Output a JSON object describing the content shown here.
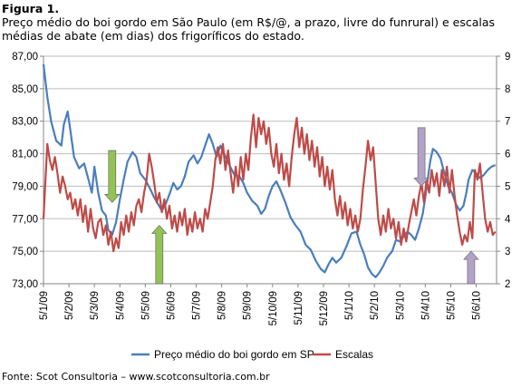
{
  "figure": {
    "label": "Figura 1.",
    "caption": "Preço médio do boi gordo em São Paulo (em R$/@, a prazo, livre do funrural) e escalas médias de abate (em dias) dos frigoríficos do estado.",
    "source": "Fonte: Scot Consultoria – www.scotconsultoria.com.br"
  },
  "chart_data": {
    "type": "line",
    "title": "",
    "xlabel": "",
    "ylabel": "",
    "x_ticks": [
      "5/1/09",
      "5/2/09",
      "5/3/09",
      "5/4/09",
      "5/5/09",
      "5/6/09",
      "5/7/09",
      "5/8/09",
      "5/9/09",
      "5/10/09",
      "5/11/09",
      "5/12/09",
      "5/1/10",
      "5/2/10",
      "5/3/10",
      "5/4/10",
      "5/5/10",
      "5/6/10"
    ],
    "x_range": [
      0,
      17.8
    ],
    "y_left": {
      "min": 73,
      "max": 87,
      "step": 2,
      "tick_labels": [
        "73,00",
        "75,00",
        "77,00",
        "79,00",
        "81,00",
        "83,00",
        "85,00",
        "87,00"
      ]
    },
    "y_right": {
      "min": 2,
      "max": 9,
      "step": 1,
      "tick_labels": [
        "2",
        "3",
        "4",
        "5",
        "6",
        "7",
        "8",
        "9"
      ]
    },
    "grid": "horizontal",
    "legend_position": "bottom",
    "series": [
      {
        "name": "Preço médio do boi gordo em SP",
        "axis": "left",
        "color": "#4a7ebb",
        "points": [
          [
            0.0,
            86.5
          ],
          [
            0.15,
            84.5
          ],
          [
            0.3,
            83.0
          ],
          [
            0.5,
            81.8
          ],
          [
            0.7,
            81.5
          ],
          [
            0.8,
            82.8
          ],
          [
            0.95,
            83.6
          ],
          [
            1.05,
            82.5
          ],
          [
            1.2,
            80.8
          ],
          [
            1.4,
            80.1
          ],
          [
            1.6,
            80.4
          ],
          [
            1.75,
            79.5
          ],
          [
            1.9,
            78.6
          ],
          [
            2.0,
            80.2
          ],
          [
            2.15,
            78.6
          ],
          [
            2.3,
            77.5
          ],
          [
            2.45,
            77.2
          ],
          [
            2.55,
            76.3
          ],
          [
            2.7,
            76.0
          ],
          [
            2.85,
            76.8
          ],
          [
            3.0,
            78.2
          ],
          [
            3.15,
            79.4
          ],
          [
            3.3,
            80.5
          ],
          [
            3.5,
            81.1
          ],
          [
            3.65,
            80.8
          ],
          [
            3.8,
            79.8
          ],
          [
            4.0,
            79.4
          ],
          [
            4.2,
            78.8
          ],
          [
            4.35,
            78.3
          ],
          [
            4.5,
            77.9
          ],
          [
            4.65,
            77.5
          ],
          [
            4.8,
            77.9
          ],
          [
            4.95,
            78.5
          ],
          [
            5.1,
            79.2
          ],
          [
            5.25,
            78.8
          ],
          [
            5.4,
            79.0
          ],
          [
            5.55,
            79.6
          ],
          [
            5.7,
            80.5
          ],
          [
            5.9,
            80.9
          ],
          [
            6.05,
            80.4
          ],
          [
            6.2,
            80.8
          ],
          [
            6.35,
            81.5
          ],
          [
            6.5,
            82.2
          ],
          [
            6.65,
            81.6
          ],
          [
            6.8,
            80.8
          ],
          [
            6.95,
            81.5
          ],
          [
            7.1,
            81.0
          ],
          [
            7.3,
            80.3
          ],
          [
            7.5,
            79.7
          ],
          [
            7.7,
            79.6
          ],
          [
            7.85,
            79.2
          ],
          [
            8.0,
            78.6
          ],
          [
            8.2,
            78.1
          ],
          [
            8.4,
            77.8
          ],
          [
            8.55,
            77.3
          ],
          [
            8.7,
            77.6
          ],
          [
            8.85,
            78.4
          ],
          [
            9.0,
            79.0
          ],
          [
            9.15,
            79.3
          ],
          [
            9.3,
            78.8
          ],
          [
            9.5,
            78.0
          ],
          [
            9.7,
            77.1
          ],
          [
            9.9,
            76.6
          ],
          [
            10.1,
            76.2
          ],
          [
            10.3,
            75.4
          ],
          [
            10.5,
            75.1
          ],
          [
            10.7,
            74.4
          ],
          [
            10.9,
            73.9
          ],
          [
            11.05,
            73.7
          ],
          [
            11.2,
            74.2
          ],
          [
            11.35,
            74.6
          ],
          [
            11.5,
            74.3
          ],
          [
            11.7,
            74.6
          ],
          [
            11.9,
            75.3
          ],
          [
            12.1,
            76.1
          ],
          [
            12.3,
            76.2
          ],
          [
            12.45,
            75.4
          ],
          [
            12.6,
            74.8
          ],
          [
            12.75,
            74.0
          ],
          [
            12.9,
            73.6
          ],
          [
            13.05,
            73.4
          ],
          [
            13.2,
            73.7
          ],
          [
            13.35,
            74.1
          ],
          [
            13.5,
            74.6
          ],
          [
            13.7,
            75.0
          ],
          [
            13.85,
            75.7
          ],
          [
            14.0,
            75.6
          ],
          [
            14.15,
            75.9
          ],
          [
            14.3,
            76.2
          ],
          [
            14.45,
            76.0
          ],
          [
            14.6,
            75.7
          ],
          [
            14.75,
            76.4
          ],
          [
            14.9,
            77.3
          ],
          [
            15.0,
            78.3
          ],
          [
            15.1,
            79.5
          ],
          [
            15.2,
            80.6
          ],
          [
            15.3,
            81.3
          ],
          [
            15.45,
            81.1
          ],
          [
            15.6,
            80.7
          ],
          [
            15.75,
            79.8
          ],
          [
            15.9,
            79.0
          ],
          [
            16.05,
            78.6
          ],
          [
            16.2,
            77.9
          ],
          [
            16.35,
            77.5
          ],
          [
            16.5,
            77.8
          ],
          [
            16.6,
            78.5
          ],
          [
            16.7,
            79.4
          ],
          [
            16.85,
            80.0
          ],
          [
            17.0,
            79.8
          ],
          [
            17.15,
            79.5
          ],
          [
            17.3,
            79.7
          ],
          [
            17.45,
            80.0
          ],
          [
            17.6,
            80.2
          ],
          [
            17.75,
            80.3
          ]
        ]
      },
      {
        "name": "Escalas",
        "axis": "right",
        "color": "#be4b48",
        "points": [
          [
            0.0,
            4.0
          ],
          [
            0.08,
            5.2
          ],
          [
            0.15,
            6.3
          ],
          [
            0.25,
            5.8
          ],
          [
            0.35,
            5.5
          ],
          [
            0.45,
            5.9
          ],
          [
            0.55,
            5.4
          ],
          [
            0.65,
            4.8
          ],
          [
            0.75,
            5.3
          ],
          [
            0.85,
            5.0
          ],
          [
            0.95,
            4.6
          ],
          [
            1.05,
            4.8
          ],
          [
            1.15,
            4.3
          ],
          [
            1.25,
            4.6
          ],
          [
            1.35,
            4.1
          ],
          [
            1.45,
            4.6
          ],
          [
            1.55,
            3.9
          ],
          [
            1.65,
            4.4
          ],
          [
            1.75,
            3.6
          ],
          [
            1.85,
            4.3
          ],
          [
            1.95,
            3.7
          ],
          [
            2.05,
            3.4
          ],
          [
            2.15,
            3.9
          ],
          [
            2.25,
            4.0
          ],
          [
            2.35,
            3.5
          ],
          [
            2.45,
            3.8
          ],
          [
            2.55,
            3.2
          ],
          [
            2.65,
            3.6
          ],
          [
            2.75,
            3.0
          ],
          [
            2.85,
            3.4
          ],
          [
            2.95,
            3.1
          ],
          [
            3.05,
            3.9
          ],
          [
            3.15,
            3.5
          ],
          [
            3.25,
            4.1
          ],
          [
            3.35,
            3.6
          ],
          [
            3.45,
            4.2
          ],
          [
            3.55,
            3.8
          ],
          [
            3.65,
            4.4
          ],
          [
            3.75,
            4.6
          ],
          [
            3.85,
            4.2
          ],
          [
            3.95,
            4.8
          ],
          [
            4.05,
            5.2
          ],
          [
            4.15,
            6.0
          ],
          [
            4.25,
            5.6
          ],
          [
            4.35,
            5.1
          ],
          [
            4.45,
            4.5
          ],
          [
            4.55,
            4.8
          ],
          [
            4.65,
            4.2
          ],
          [
            4.75,
            4.6
          ],
          [
            4.85,
            4.0
          ],
          [
            4.95,
            4.4
          ],
          [
            5.05,
            3.7
          ],
          [
            5.15,
            4.1
          ],
          [
            5.25,
            3.6
          ],
          [
            5.35,
            4.2
          ],
          [
            5.45,
            3.8
          ],
          [
            5.55,
            4.3
          ],
          [
            5.65,
            3.5
          ],
          [
            5.75,
            4.0
          ],
          [
            5.85,
            3.6
          ],
          [
            5.95,
            4.2
          ],
          [
            6.05,
            3.7
          ],
          [
            6.15,
            4.0
          ],
          [
            6.25,
            3.6
          ],
          [
            6.35,
            4.3
          ],
          [
            6.45,
            4.0
          ],
          [
            6.55,
            4.5
          ],
          [
            6.65,
            5.0
          ],
          [
            6.75,
            5.8
          ],
          [
            6.85,
            6.2
          ],
          [
            6.95,
            5.7
          ],
          [
            7.05,
            6.3
          ],
          [
            7.15,
            5.5
          ],
          [
            7.25,
            6.1
          ],
          [
            7.35,
            5.4
          ],
          [
            7.45,
            4.8
          ],
          [
            7.55,
            5.6
          ],
          [
            7.65,
            5.0
          ],
          [
            7.75,
            5.9
          ],
          [
            7.85,
            5.2
          ],
          [
            7.95,
            6.0
          ],
          [
            8.05,
            5.5
          ],
          [
            8.15,
            6.5
          ],
          [
            8.25,
            7.2
          ],
          [
            8.35,
            6.2
          ],
          [
            8.45,
            7.1
          ],
          [
            8.55,
            6.6
          ],
          [
            8.65,
            7.0
          ],
          [
            8.75,
            6.3
          ],
          [
            8.85,
            6.8
          ],
          [
            8.95,
            6.0
          ],
          [
            9.05,
            5.6
          ],
          [
            9.15,
            6.3
          ],
          [
            9.25,
            5.4
          ],
          [
            9.35,
            6.0
          ],
          [
            9.45,
            5.2
          ],
          [
            9.55,
            5.7
          ],
          [
            9.65,
            5.0
          ],
          [
            9.75,
            5.9
          ],
          [
            9.85,
            6.6
          ],
          [
            9.95,
            7.1
          ],
          [
            10.05,
            6.2
          ],
          [
            10.15,
            6.8
          ],
          [
            10.25,
            6.0
          ],
          [
            10.35,
            6.6
          ],
          [
            10.45,
            5.8
          ],
          [
            10.55,
            6.4
          ],
          [
            10.65,
            5.6
          ],
          [
            10.75,
            6.2
          ],
          [
            10.85,
            5.3
          ],
          [
            10.95,
            5.9
          ],
          [
            11.05,
            5.0
          ],
          [
            11.15,
            5.6
          ],
          [
            11.25,
            4.9
          ],
          [
            11.35,
            5.5
          ],
          [
            11.45,
            4.6
          ],
          [
            11.55,
            4.1
          ],
          [
            11.65,
            4.7
          ],
          [
            11.75,
            4.0
          ],
          [
            11.85,
            4.5
          ],
          [
            11.95,
            3.8
          ],
          [
            12.05,
            4.3
          ],
          [
            12.15,
            3.7
          ],
          [
            12.25,
            4.1
          ],
          [
            12.35,
            3.6
          ],
          [
            12.45,
            4.0
          ],
          [
            12.55,
            4.9
          ],
          [
            12.65,
            5.6
          ],
          [
            12.75,
            6.4
          ],
          [
            12.85,
            5.8
          ],
          [
            12.95,
            6.2
          ],
          [
            13.05,
            5.1
          ],
          [
            13.15,
            4.0
          ],
          [
            13.25,
            3.5
          ],
          [
            13.35,
            4.1
          ],
          [
            13.45,
            3.6
          ],
          [
            13.55,
            4.3
          ],
          [
            13.65,
            3.7
          ],
          [
            13.75,
            4.0
          ],
          [
            13.85,
            3.4
          ],
          [
            13.95,
            3.9
          ],
          [
            14.05,
            3.2
          ],
          [
            14.15,
            3.7
          ],
          [
            14.25,
            3.3
          ],
          [
            14.35,
            3.8
          ],
          [
            14.45,
            4.2
          ],
          [
            14.55,
            4.6
          ],
          [
            14.65,
            4.1
          ],
          [
            14.75,
            4.7
          ],
          [
            14.85,
            5.1
          ],
          [
            14.95,
            4.5
          ],
          [
            15.05,
            5.2
          ],
          [
            15.15,
            4.8
          ],
          [
            15.25,
            5.5
          ],
          [
            15.35,
            5.0
          ],
          [
            15.45,
            5.4
          ],
          [
            15.55,
            4.7
          ],
          [
            15.65,
            5.5
          ],
          [
            15.75,
            5.0
          ],
          [
            15.85,
            5.6
          ],
          [
            15.95,
            4.8
          ],
          [
            16.05,
            5.5
          ],
          [
            16.15,
            4.7
          ],
          [
            16.25,
            4.1
          ],
          [
            16.35,
            3.6
          ],
          [
            16.45,
            3.2
          ],
          [
            16.55,
            3.5
          ],
          [
            16.65,
            3.3
          ],
          [
            16.75,
            3.9
          ],
          [
            16.85,
            3.4
          ],
          [
            16.95,
            5.5
          ],
          [
            17.05,
            5.2
          ],
          [
            17.15,
            5.7
          ],
          [
            17.25,
            4.8
          ],
          [
            17.35,
            4.0
          ],
          [
            17.45,
            3.6
          ],
          [
            17.55,
            3.9
          ],
          [
            17.65,
            3.5
          ],
          [
            17.75,
            3.6
          ]
        ]
      }
    ],
    "annotations": [
      {
        "kind": "arrow-down",
        "color": "#92c353",
        "x": 2.7,
        "from_y": 6.1,
        "to_y": 4.5,
        "axis": "right"
      },
      {
        "kind": "arrow-up",
        "color": "#92c353",
        "x": 4.55,
        "from_y": 2.0,
        "to_y": 3.8,
        "axis": "right"
      },
      {
        "kind": "arrow-down",
        "color": "#b3a2c7",
        "x": 14.85,
        "from_y": 6.8,
        "to_y": 5.0,
        "axis": "right"
      },
      {
        "kind": "arrow-up",
        "color": "#b3a2c7",
        "x": 16.8,
        "from_y": 2.0,
        "to_y": 3.0,
        "axis": "right"
      }
    ]
  }
}
